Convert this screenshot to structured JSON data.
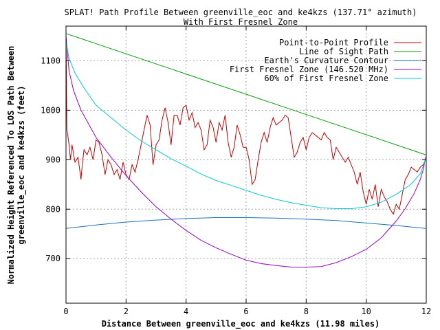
{
  "chart_data": {
    "type": "line",
    "title": "SPLAT! Path Profile Between greenville_eoc and ke4kzs (137.71° azimuth)",
    "subtitle": "With First Fresnel Zone",
    "xlabel": "Distance Between greenville_eoc and ke4kzs (11.98 miles)",
    "ylabel_line1": "Normalized Height Referenced To LOS Path Between",
    "ylabel_line2": "greenville_eoc and ke4kzs (feet)",
    "xlim": [
      0,
      12
    ],
    "ylim": [
      610,
      1170
    ],
    "x_ticks": [
      0,
      2,
      4,
      6,
      8,
      10,
      12
    ],
    "y_ticks": [
      700,
      800,
      900,
      1000,
      1100
    ],
    "grid": true,
    "legend_position": "top-right",
    "series": [
      {
        "name": "Point-to-Point Profile",
        "color": "#c00000",
        "x": [
          0,
          0.03,
          0.06,
          0.1,
          0.15,
          0.2,
          0.3,
          0.4,
          0.5,
          0.55,
          0.6,
          0.7,
          0.8,
          0.9,
          1.0,
          1.1,
          1.2,
          1.3,
          1.4,
          1.5,
          1.6,
          1.7,
          1.8,
          1.9,
          2.0,
          2.1,
          2.2,
          2.3,
          2.4,
          2.5,
          2.6,
          2.7,
          2.8,
          2.9,
          3.0,
          3.1,
          3.2,
          3.3,
          3.4,
          3.5,
          3.6,
          3.7,
          3.8,
          3.9,
          4.0,
          4.1,
          4.2,
          4.3,
          4.4,
          4.5,
          4.6,
          4.7,
          4.8,
          4.9,
          5.0,
          5.1,
          5.2,
          5.3,
          5.4,
          5.5,
          5.6,
          5.7,
          5.8,
          5.9,
          6.0,
          6.1,
          6.2,
          6.3,
          6.4,
          6.5,
          6.6,
          6.7,
          6.8,
          6.9,
          7.0,
          7.1,
          7.2,
          7.3,
          7.4,
          7.5,
          7.6,
          7.7,
          7.8,
          7.9,
          8.0,
          8.1,
          8.2,
          8.3,
          8.4,
          8.5,
          8.6,
          8.7,
          8.8,
          8.9,
          9.0,
          9.1,
          9.2,
          9.3,
          9.4,
          9.5,
          9.6,
          9.7,
          9.8,
          9.9,
          10.0,
          10.1,
          10.2,
          10.3,
          10.4,
          10.5,
          10.6,
          10.7,
          10.8,
          10.9,
          11.0,
          11.1,
          11.2,
          11.3,
          11.4,
          11.5,
          11.6,
          11.7,
          11.8,
          11.9,
          11.98
        ],
        "y": [
          1150,
          960,
          950,
          930,
          900,
          930,
          895,
          905,
          860,
          895,
          920,
          910,
          925,
          900,
          940,
          935,
          910,
          870,
          900,
          890,
          870,
          880,
          860,
          895,
          870,
          860,
          890,
          875,
          900,
          930,
          960,
          990,
          970,
          890,
          930,
          940,
          980,
          1005,
          975,
          930,
          990,
          990,
          970,
          1005,
          1010,
          980,
          995,
          965,
          975,
          960,
          920,
          930,
          980,
          965,
          935,
          975,
          960,
          990,
          935,
          905,
          925,
          970,
          950,
          925,
          925,
          900,
          850,
          860,
          900,
          935,
          955,
          935,
          965,
          985,
          970,
          975,
          980,
          990,
          985,
          945,
          905,
          915,
          935,
          945,
          920,
          945,
          955,
          950,
          945,
          940,
          955,
          945,
          940,
          900,
          925,
          915,
          905,
          895,
          905,
          890,
          875,
          850,
          875,
          835,
          810,
          840,
          820,
          850,
          805,
          840,
          825,
          815,
          800,
          790,
          810,
          800,
          830,
          860,
          870,
          885,
          880,
          875,
          885,
          890,
          900
        ]
      },
      {
        "name": "Line of Sight Path",
        "color": "#00a000",
        "x": [
          0,
          11.98
        ],
        "y": [
          1155,
          910
        ]
      },
      {
        "name": "Earth's Curvature Contour",
        "color": "#1870c0",
        "x": [
          0,
          1,
          2,
          3,
          4,
          5,
          6,
          7,
          8,
          9,
          10,
          11,
          11.98
        ],
        "y": [
          761,
          768,
          774,
          778,
          781,
          783,
          783,
          782,
          780,
          777,
          772,
          767,
          761
        ]
      },
      {
        "name": "First Fresnel Zone (146.520 MHz)",
        "color": "#9400c8",
        "x": [
          0,
          0.1,
          0.25,
          0.5,
          1,
          1.5,
          2,
          2.5,
          3,
          3.5,
          4,
          4.5,
          5,
          5.5,
          6,
          6.5,
          7,
          7.5,
          8,
          8.5,
          9,
          9.5,
          10,
          10.5,
          11,
          11.3,
          11.6,
          11.8,
          11.9,
          11.98
        ],
        "y": [
          1150,
          1080,
          1040,
          1000,
          945,
          905,
          868,
          835,
          805,
          780,
          757,
          737,
          722,
          709,
          697,
          690,
          686,
          683,
          683,
          684,
          692,
          704,
          719,
          742,
          776,
          801,
          832,
          860,
          880,
          905
        ]
      },
      {
        "name": "60% of First Fresnel Zone",
        "color": "#00c8d8",
        "x": [
          0,
          0.1,
          0.3,
          0.6,
          1,
          1.5,
          2,
          2.5,
          3,
          3.5,
          4,
          4.5,
          5,
          5.5,
          6,
          6.5,
          7,
          7.5,
          8,
          8.5,
          9,
          9.5,
          10,
          10.5,
          11,
          11.5,
          11.8,
          11.98
        ],
        "y": [
          1140,
          1105,
          1075,
          1045,
          1010,
          985,
          960,
          938,
          920,
          902,
          887,
          871,
          858,
          848,
          838,
          828,
          820,
          813,
          808,
          803,
          801,
          801,
          805,
          814,
          830,
          851,
          872,
          900
        ]
      }
    ]
  }
}
